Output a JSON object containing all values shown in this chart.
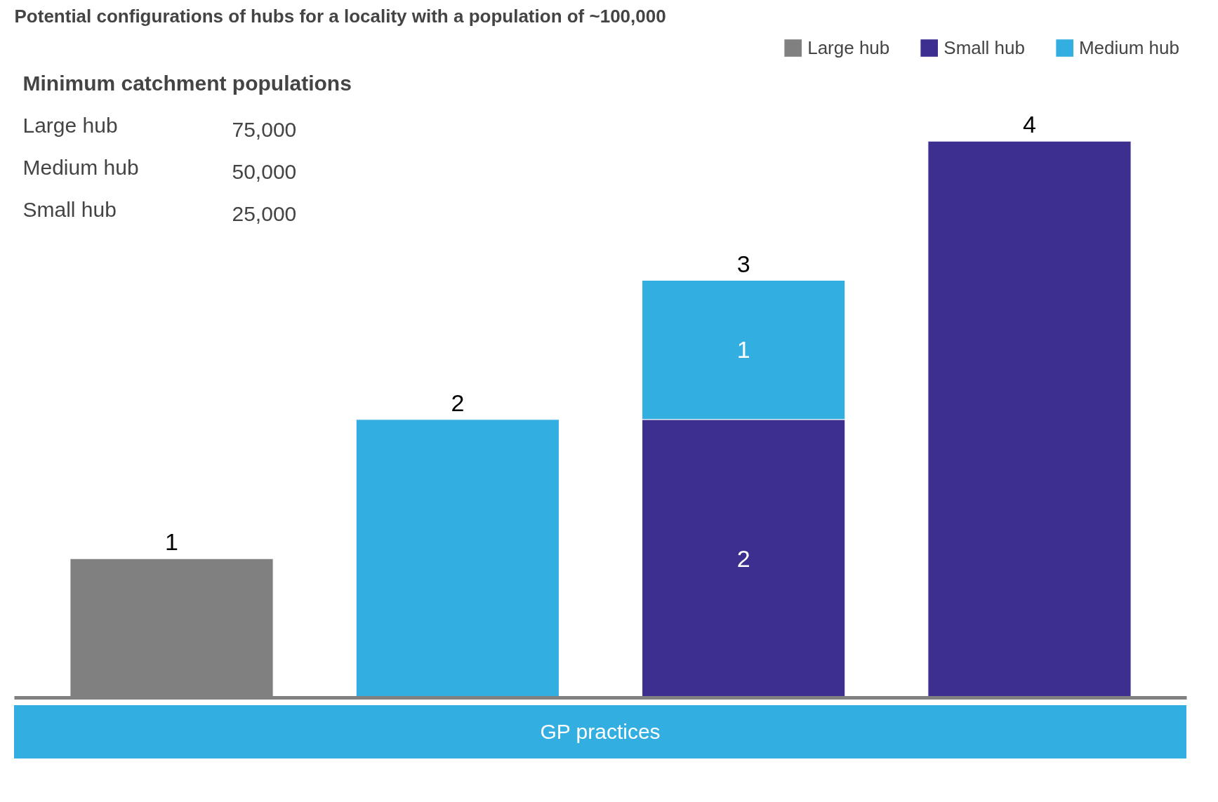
{
  "chart_data": {
    "type": "bar",
    "title": "Potential configurations of hubs for a locality with a population of ~100,000",
    "xlabel": "GP practices",
    "categories": [
      null,
      null,
      null,
      null
    ],
    "stacked": true,
    "series": [
      {
        "name": "Large hub",
        "color": "#808080",
        "values": [
          1,
          null,
          null,
          null
        ]
      },
      {
        "name": "Small hub",
        "color": "#3c2f8f",
        "values": [
          null,
          null,
          2,
          4
        ],
        "value_labels": [
          null,
          null,
          "2",
          null
        ]
      },
      {
        "name": "Medium hub",
        "color": "#33aee0",
        "values": [
          null,
          2,
          1,
          null
        ],
        "value_labels": [
          null,
          null,
          "1",
          null
        ]
      }
    ],
    "totals": [
      "1",
      "2",
      "3",
      "4"
    ],
    "legend": "top right",
    "grid": false,
    "annotations": [
      "Minimum catchment populations",
      "Large hub",
      "75,000",
      "Medium hub",
      "50,000",
      "Small hub",
      "25,000"
    ]
  }
}
